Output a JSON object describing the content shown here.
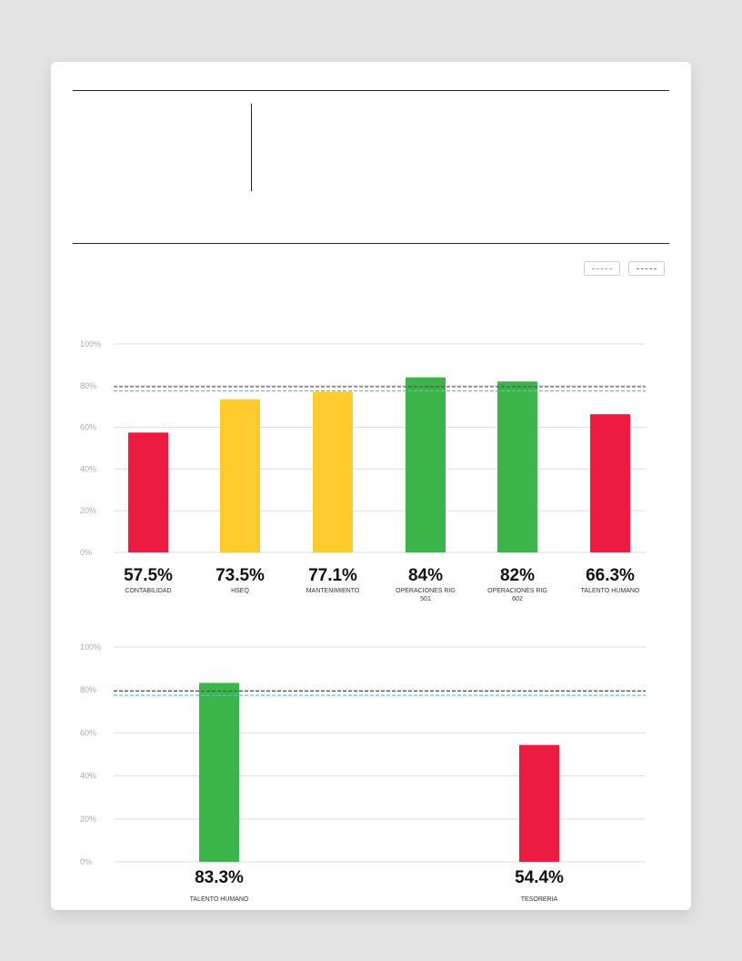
{
  "colors": {
    "red": "#ec1b3f",
    "yellow": "#ffcb2d",
    "green": "#3bb54a",
    "target_dark": "#555555",
    "target_cyan": "#5bc0de",
    "grid": "#dddddd",
    "tick_text": "#aaaaaa"
  },
  "legend": [
    {
      "label": "",
      "style": "cyan-dashed"
    },
    {
      "label": "",
      "style": "dark-dashed"
    }
  ],
  "chart_data": [
    {
      "type": "bar",
      "categories": [
        "CONTABILIDAD",
        "HSEQ",
        "MANTENIMIENTO",
        "OPERACIONES RIG 501",
        "OPERACIONES RIG 602",
        "TALENTO HUMANO"
      ],
      "values": [
        57.5,
        73.5,
        77.1,
        84,
        82,
        66.3
      ],
      "value_labels": [
        "57.5%",
        "73.5%",
        "77.1%",
        "84%",
        "82%",
        "66.3%"
      ],
      "bar_colors": [
        "red",
        "yellow",
        "yellow",
        "green",
        "green",
        "red"
      ],
      "yticks": [
        "0%",
        "20%",
        "40%",
        "60%",
        "80%",
        "100%"
      ],
      "ylim": [
        0,
        100
      ],
      "reference_lines": [
        {
          "value": 79.5,
          "style": "dark-dashed"
        },
        {
          "value": 77.5,
          "style": "cyan-dashed"
        }
      ],
      "grid": true
    },
    {
      "type": "bar",
      "categories": [
        "TALENTO HUMANO",
        "TESORERIA"
      ],
      "values": [
        83.3,
        54.4
      ],
      "value_labels": [
        "83.3%",
        "54.4%"
      ],
      "bar_colors": [
        "green",
        "red"
      ],
      "yticks": [
        "0%",
        "20%",
        "40%",
        "60%",
        "80%",
        "100%"
      ],
      "ylim": [
        0,
        100
      ],
      "reference_lines": [
        {
          "value": 79.5,
          "style": "dark-dashed"
        },
        {
          "value": 77.5,
          "style": "cyan-dashed"
        }
      ],
      "grid": true
    }
  ]
}
